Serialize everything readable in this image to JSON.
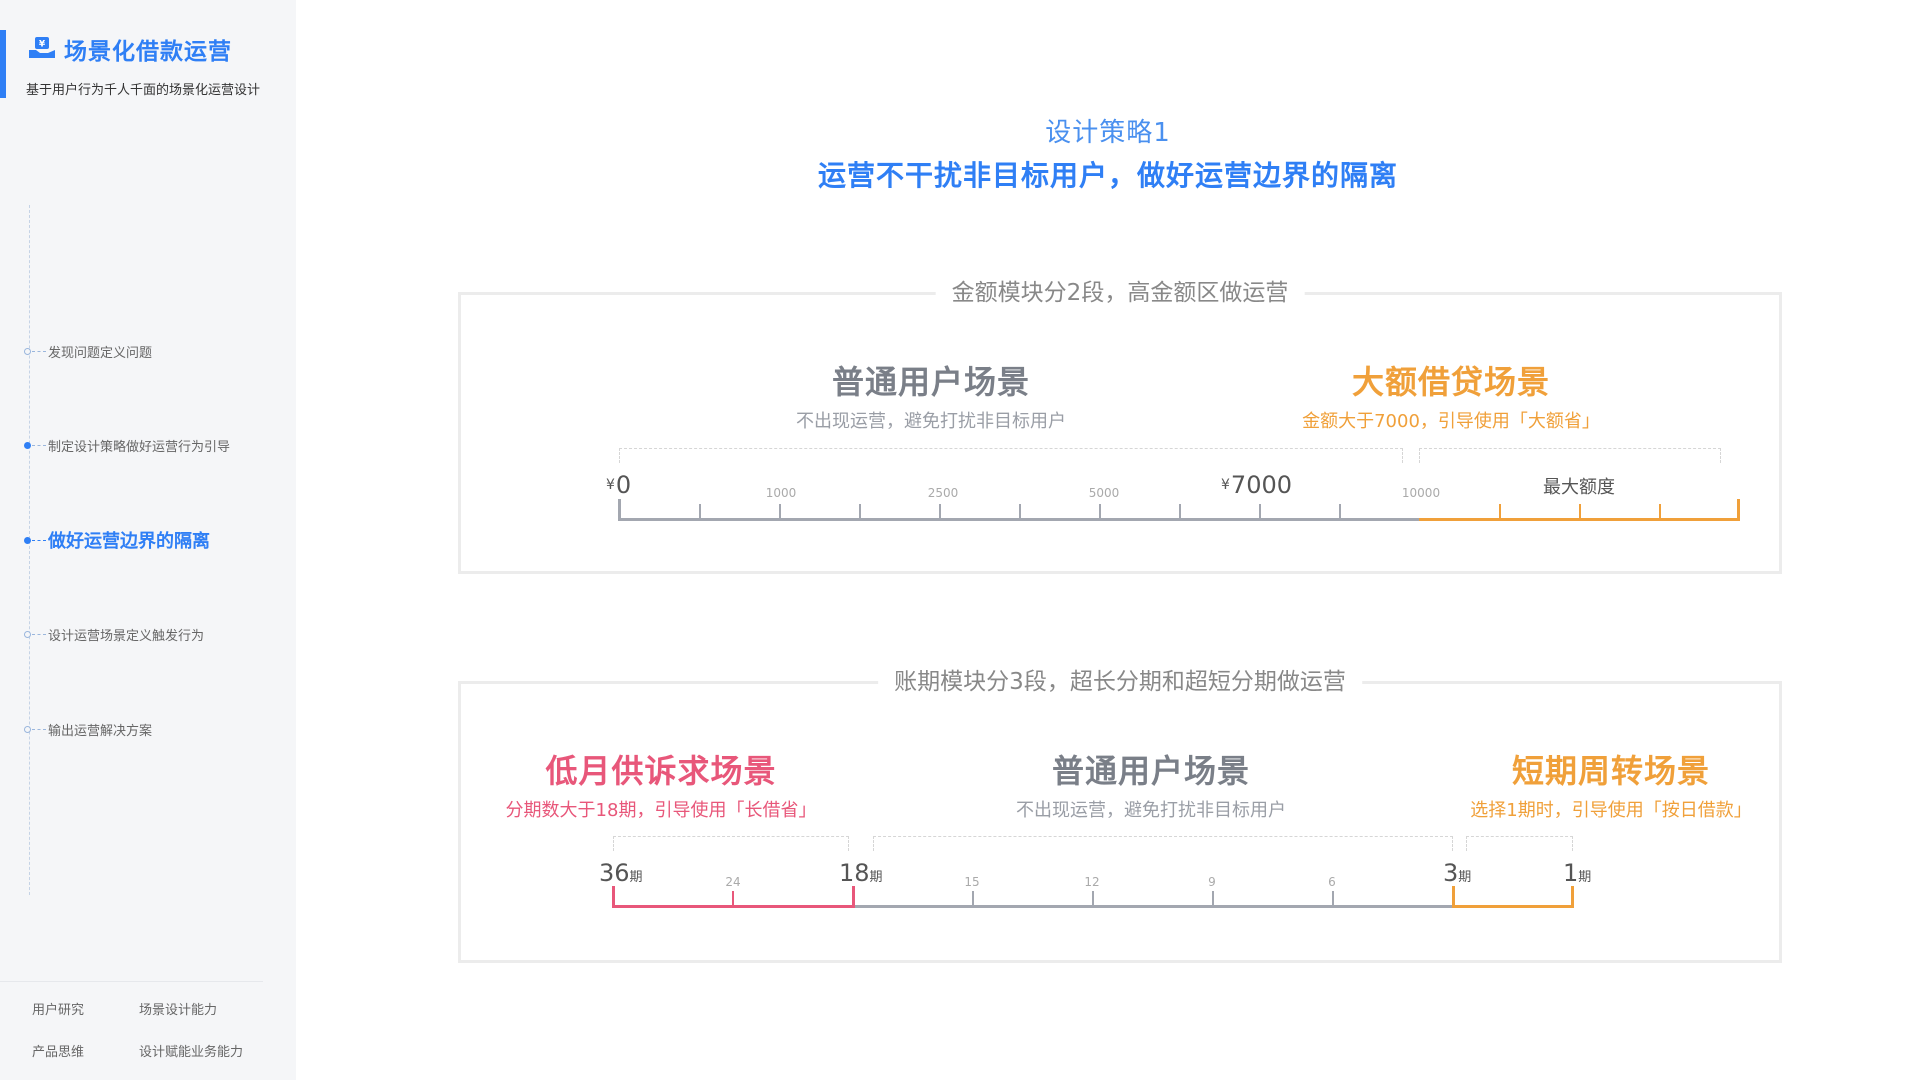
{
  "sidebar": {
    "title": "场景化借款运营",
    "subtitle": "基于用户行为千人千面的场景化运营设计",
    "nav": [
      {
        "label": "发现问题定义问题"
      },
      {
        "label": "制定设计策略做好运营行为引导"
      },
      {
        "label": "做好运营边界的隔离",
        "active": true
      },
      {
        "label": "设计运营场景定义触发行为"
      },
      {
        "label": "输出运营解决方案"
      }
    ],
    "abilities": [
      "用户研究",
      "场景设计能力",
      "产品思维",
      "设计赋能业务能力"
    ]
  },
  "main": {
    "eyebrow": "设计策略1",
    "title": "运营不干扰非目标用户，做好运营边界的隔离",
    "amount_panel": {
      "title": "金额模块分2段，高金额区做运营",
      "scenes": [
        {
          "title": "普通用户场景",
          "desc": "不出现运营，避免打扰非目标用户"
        },
        {
          "title": "大额借贷场景",
          "desc": "金额大于7000，引导使用「大额省」"
        }
      ],
      "axis": {
        "currency": "¥",
        "start": "0",
        "split": "7000",
        "ticks": [
          "1000",
          "2500",
          "5000",
          "10000"
        ],
        "end": "最大额度"
      }
    },
    "term_panel": {
      "title": "账期模块分3段，超长分期和超短分期做运营",
      "scenes": [
        {
          "title": "低月供诉求场景",
          "desc": "分期数大于18期，引导使用「长借省」"
        },
        {
          "title": "普通用户场景",
          "desc": "不出现运营，避免打扰非目标用户"
        },
        {
          "title": "短期周转场景",
          "desc": "选择1期时，引导使用「按日借款」"
        }
      ],
      "axis": {
        "unit": "期",
        "major": [
          "36",
          "18",
          "3",
          "1"
        ],
        "ticks": [
          "24",
          "15",
          "12",
          "9",
          "6"
        ]
      }
    }
  },
  "colors": {
    "accent": "#2f7ff5",
    "gray_segment": "#a3a7b0",
    "orange_segment": "#f0a03a",
    "red_segment": "#e8577a"
  }
}
